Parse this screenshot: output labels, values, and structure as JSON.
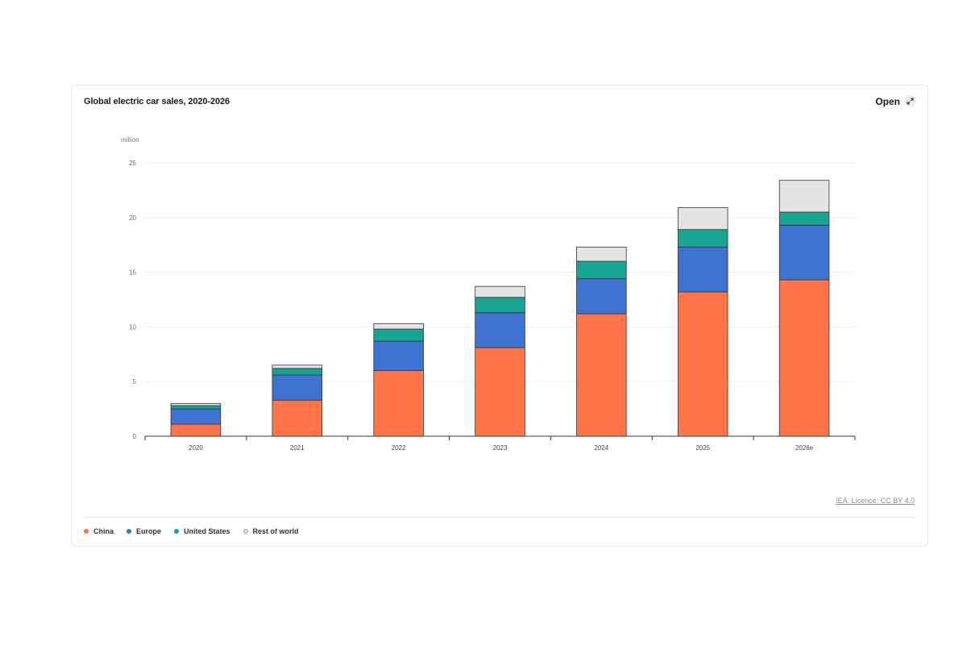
{
  "card": {
    "title": "Global electric car sales, 2020-2026",
    "open_label": "Open",
    "source_label": "IEA. Licence: CC BY 4.0"
  },
  "colors": {
    "China": "#ff7549",
    "Europe": "#3e73d1",
    "United States": "#16a493",
    "Rest of world": "#e4e4e4",
    "bar_stroke": "#333333",
    "grid": "#eeeeee",
    "axis": "#333333"
  },
  "chart_data": {
    "type": "bar",
    "stacked": true,
    "title": "Global electric car sales, 2020-2026",
    "xlabel": "",
    "ylabel": "million",
    "ylim": [
      0,
      25
    ],
    "yticks": [
      0,
      5,
      10,
      15,
      20,
      25
    ],
    "grid": true,
    "legend": "bottom-left",
    "categories": [
      "2020",
      "2021",
      "2022",
      "2023",
      "2024",
      "2025",
      "2026e"
    ],
    "series": [
      {
        "name": "China",
        "values": [
          1.1,
          3.3,
          6.0,
          8.1,
          11.2,
          13.2,
          14.3
        ]
      },
      {
        "name": "Europe",
        "values": [
          1.4,
          2.3,
          2.7,
          3.2,
          3.2,
          4.1,
          5.0
        ]
      },
      {
        "name": "United States",
        "values": [
          0.3,
          0.6,
          1.1,
          1.4,
          1.6,
          1.6,
          1.2
        ]
      },
      {
        "name": "Rest of world",
        "values": [
          0.2,
          0.3,
          0.5,
          1.0,
          1.3,
          2.0,
          2.9
        ]
      }
    ]
  }
}
